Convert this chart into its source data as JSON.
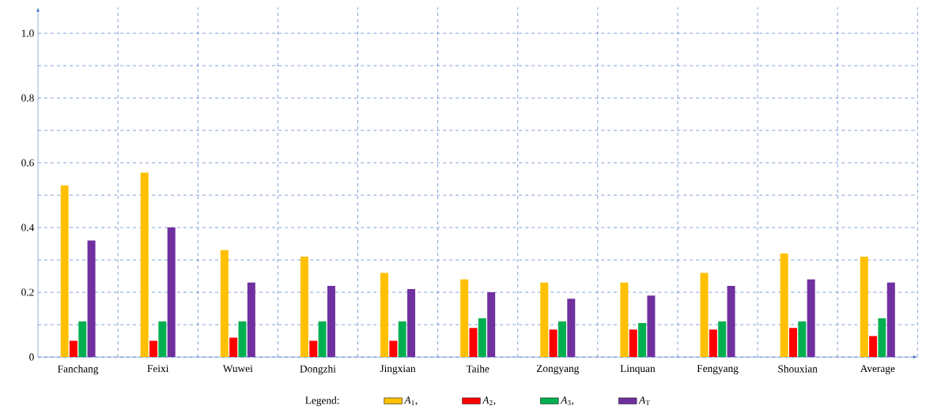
{
  "chart_data": {
    "type": "bar",
    "categories": [
      "Fanchang",
      "Feixi",
      "Wuwei",
      "Dongzhi",
      "Jingxian",
      "Taihe",
      "Zongyang",
      "Linquan",
      "Fengyang",
      "Shouxian",
      "Average"
    ],
    "series": [
      {
        "name": "*A*$_{1}$,",
        "color": "#ffc000",
        "values": [
          0.53,
          0.57,
          0.33,
          0.31,
          0.26,
          0.24,
          0.23,
          0.23,
          0.26,
          0.32,
          0.31
        ]
      },
      {
        "name": "*A*$_{2}$,",
        "color": "#ff0000",
        "values": [
          0.05,
          0.05,
          0.06,
          0.05,
          0.05,
          0.09,
          0.085,
          0.085,
          0.085,
          0.09,
          0.065
        ]
      },
      {
        "name": "*A*$_{3}$,",
        "color": "#00b050",
        "values": [
          0.11,
          0.11,
          0.11,
          0.11,
          0.11,
          0.12,
          0.11,
          0.105,
          0.11,
          0.11,
          0.12
        ]
      },
      {
        "name": "*A*$_{T}$",
        "color": "#7030a0",
        "values": [
          0.36,
          0.4,
          0.23,
          0.22,
          0.21,
          0.2,
          0.18,
          0.19,
          0.22,
          0.24,
          0.23
        ]
      }
    ],
    "legend_title": "Legend:",
    "ylim": [
      0,
      1.08
    ],
    "yticks": [
      0,
      {
        "value": 0.1,
        "label": null
      },
      0.2,
      {
        "value": 0.3,
        "label": null
      },
      0.4,
      {
        "value": 0.5,
        "label": null
      },
      0.6,
      {
        "value": 0.7,
        "label": null
      },
      0.8,
      {
        "value": 0.9,
        "label": null
      },
      {
        "value": 1,
        "label": "1.0"
      }
    ],
    "grid": true,
    "legend": "bottom"
  }
}
